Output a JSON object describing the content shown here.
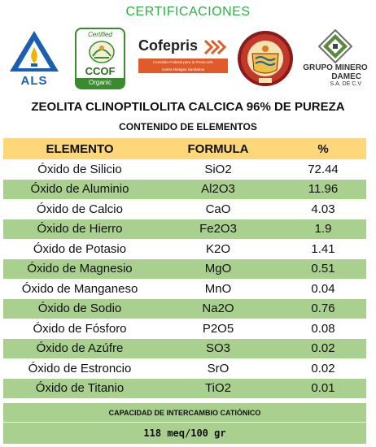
{
  "certifications_title": "CERTIFICACIONES",
  "logos": {
    "als": {
      "label": "ALS",
      "color": "#1a5fb4"
    },
    "ccof": {
      "certified": "Certified",
      "name": "CCOF",
      "organic": "Organic",
      "color": "#3a8a2e"
    },
    "cofepris": {
      "name": "Cofepris",
      "subtitle_1": "Comisión Federal para la Protección",
      "subtitle_2": "contra Riesgos Sanitarios",
      "color": "#e05a2a"
    },
    "seal": {
      "icon": "university-seal-icon"
    },
    "grupo_minero": {
      "line1": "GRUPO MINERO",
      "line2": "DAMEC",
      "line3": "S.A. DE C.V"
    }
  },
  "main_title": "ZEOLITA CLINOPTILOLITA CALCICA 96% DE PUREZA",
  "section_title": "CONTENIDO DE ELEMENTOS",
  "table": {
    "headers": [
      "ELEMENTO",
      "FORMULA",
      "%"
    ],
    "rows": [
      [
        "Óxido de Silicio",
        "SiO2",
        "72.44"
      ],
      [
        "Óxido de Aluminio",
        "Al2O3",
        "11.96"
      ],
      [
        "Óxido de Calcio",
        "CaO",
        "4.03"
      ],
      [
        "Óxido de Hierro",
        "Fe2O3",
        "1.9"
      ],
      [
        "Óxido de Potasio",
        "K2O",
        "1.41"
      ],
      [
        "Óxido de Magnesio",
        "MgO",
        "0.51"
      ],
      [
        "Óxido de Manganeso",
        "MnO",
        "0.04"
      ],
      [
        "Óxido de Sodio",
        "Na2O",
        "0.76"
      ],
      [
        "Óxido de Fósforo",
        "P2O5",
        "0.08"
      ],
      [
        "Óxido de Azúfre",
        "SO3",
        "0.02"
      ],
      [
        "Óxido de Estroncio",
        "SrO",
        "0.02"
      ],
      [
        "Óxido de Titanio",
        "TiO2",
        "0.01"
      ]
    ]
  },
  "footer": {
    "label": "CAPACIDAD DE INTERCAMBIO CATIÓNICO",
    "value": "118 meq/100 gr"
  },
  "colors": {
    "header_bg": "#fdd77a",
    "stripe_bg": "#a9d08e",
    "title_green": "#2fae45"
  }
}
